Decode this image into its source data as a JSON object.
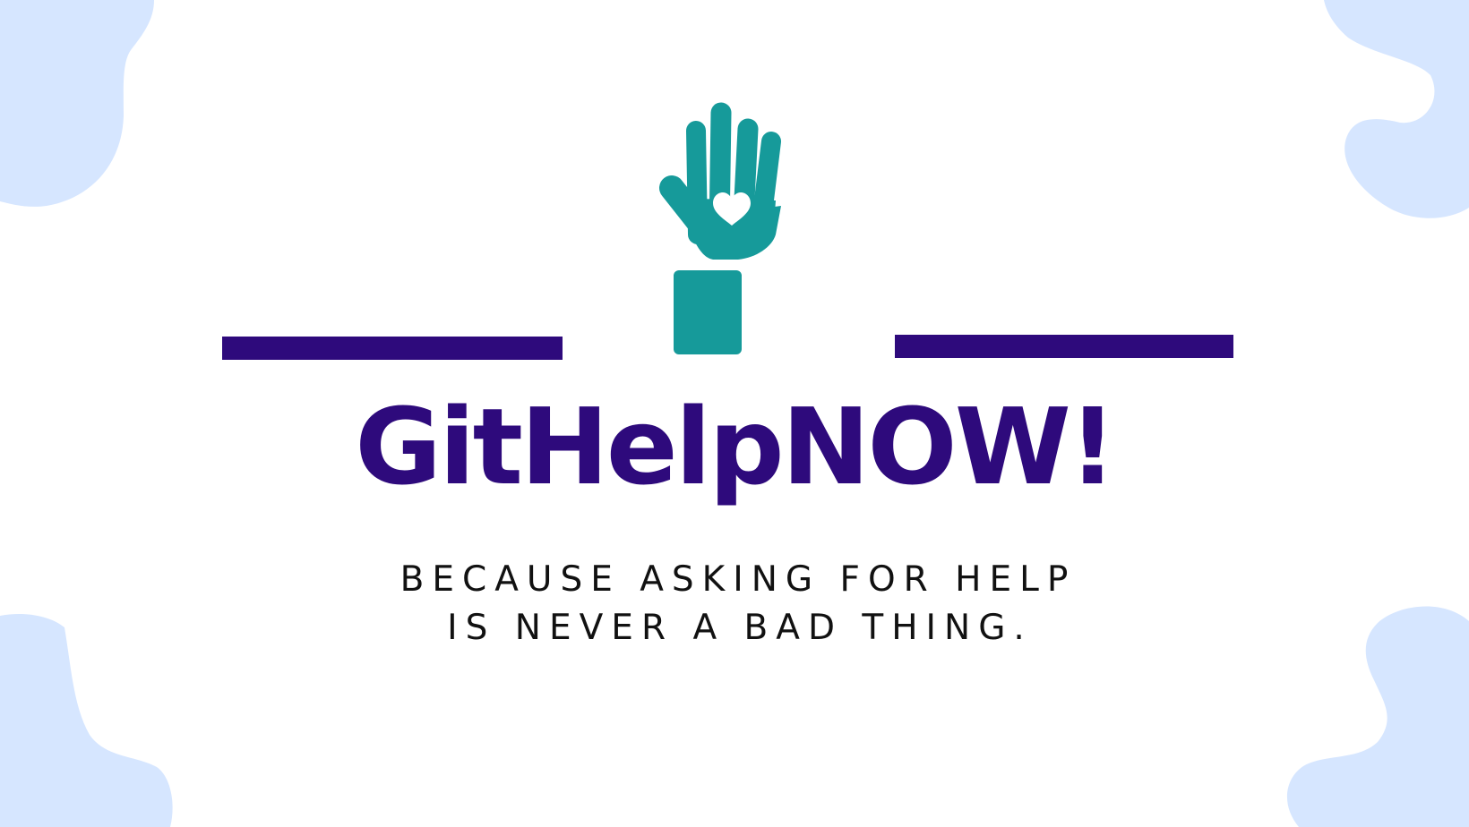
{
  "colors": {
    "background": "#ffffff",
    "blob": "#d6e6ff",
    "brand": "#2e0a7c",
    "hand": "#169a9a",
    "heart": "#ffffff",
    "tagline": "#111111"
  },
  "logo": {
    "icon": "raised-hand-with-heart-icon",
    "title": "GitHelpNOW!"
  },
  "tagline": {
    "line1": "BECAUSE ASKING FOR HELP",
    "line2": "IS NEVER A BAD THING."
  }
}
